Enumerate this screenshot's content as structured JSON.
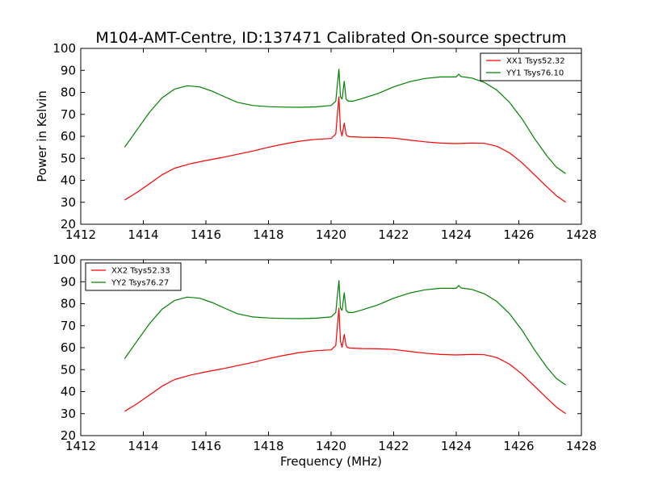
{
  "chart_data": [
    {
      "type": "line",
      "title": "M104-AMT-Centre, ID:137471 Calibrated On-source spectrum",
      "xlabel": "",
      "ylabel": "Power in Kelvin",
      "xlim": [
        1412,
        1428
      ],
      "ylim": [
        20,
        100
      ],
      "xticks": [
        1412,
        1414,
        1416,
        1418,
        1420,
        1422,
        1424,
        1426,
        1428
      ],
      "yticks": [
        20,
        30,
        40,
        50,
        60,
        70,
        80,
        90,
        100
      ],
      "grid": false,
      "legend_position": "top-right",
      "series": [
        {
          "name": "XX1 Tsys52.32",
          "color": "#ff0000",
          "x": [
            1413.4,
            1413.8,
            1414.2,
            1414.6,
            1415.0,
            1415.5,
            1416.0,
            1416.5,
            1417.0,
            1417.5,
            1418.0,
            1418.5,
            1419.0,
            1419.5,
            1420.0,
            1420.15,
            1420.25,
            1420.3,
            1420.35,
            1420.42,
            1420.48,
            1420.52,
            1420.6,
            1421.0,
            1421.5,
            1422.0,
            1422.5,
            1423.0,
            1423.5,
            1424.0,
            1424.5,
            1424.9,
            1425.3,
            1425.7,
            1426.1,
            1426.5,
            1426.9,
            1427.2,
            1427.5
          ],
          "values": [
            31,
            34.5,
            38.5,
            42.5,
            45.5,
            47.5,
            49,
            50.3,
            51.8,
            53.3,
            55,
            56.5,
            57.8,
            58.6,
            59,
            61,
            78,
            63,
            60.2,
            66,
            61,
            60.2,
            59.8,
            59.6,
            59.5,
            59.2,
            58.3,
            57.5,
            56.9,
            56.7,
            56.9,
            56.8,
            55.5,
            52.5,
            48,
            42.5,
            37,
            33,
            30
          ]
        },
        {
          "name": "YY1 Tsys76.10",
          "color": "#008000",
          "x": [
            1413.4,
            1413.8,
            1414.2,
            1414.6,
            1415.0,
            1415.4,
            1415.8,
            1416.2,
            1416.6,
            1417.0,
            1417.5,
            1418.0,
            1418.5,
            1419.0,
            1419.5,
            1420.0,
            1420.15,
            1420.25,
            1420.3,
            1420.35,
            1420.42,
            1420.48,
            1420.55,
            1420.7,
            1421.0,
            1421.5,
            1422.0,
            1422.5,
            1423.0,
            1423.5,
            1424.0,
            1424.08,
            1424.15,
            1424.5,
            1424.9,
            1425.3,
            1425.7,
            1426.1,
            1426.5,
            1426.9,
            1427.2,
            1427.5
          ],
          "values": [
            55,
            63,
            71,
            77.5,
            81.5,
            83,
            82.5,
            80.5,
            78,
            75.5,
            74,
            73.5,
            73.3,
            73.2,
            73.4,
            74,
            76,
            90.5,
            78,
            77,
            85,
            77,
            76,
            76,
            77.2,
            79.5,
            82.5,
            84.8,
            86.3,
            87,
            87,
            88.3,
            87.2,
            86.5,
            84.5,
            81,
            75.5,
            68,
            59,
            51,
            46,
            43
          ]
        }
      ]
    },
    {
      "type": "line",
      "title": "",
      "xlabel": "Frequency (MHz)",
      "ylabel": "",
      "xlim": [
        1412,
        1428
      ],
      "ylim": [
        20,
        100
      ],
      "xticks": [
        1412,
        1414,
        1416,
        1418,
        1420,
        1422,
        1424,
        1426,
        1428
      ],
      "yticks": [
        20,
        30,
        40,
        50,
        60,
        70,
        80,
        90,
        100
      ],
      "grid": false,
      "legend_position": "top-left",
      "series": [
        {
          "name": "XX2 Tsys52.33",
          "color": "#ff0000",
          "x": [
            1413.4,
            1413.8,
            1414.2,
            1414.6,
            1415.0,
            1415.5,
            1416.0,
            1416.5,
            1417.0,
            1417.5,
            1418.0,
            1418.5,
            1419.0,
            1419.5,
            1420.0,
            1420.15,
            1420.25,
            1420.3,
            1420.35,
            1420.42,
            1420.48,
            1420.52,
            1420.6,
            1421.0,
            1421.5,
            1422.0,
            1422.5,
            1423.0,
            1423.5,
            1424.0,
            1424.5,
            1424.9,
            1425.3,
            1425.7,
            1426.1,
            1426.5,
            1426.9,
            1427.2,
            1427.5
          ],
          "values": [
            31,
            34.5,
            38.5,
            42.5,
            45.5,
            47.5,
            49,
            50.3,
            51.8,
            53.3,
            55,
            56.5,
            57.8,
            58.6,
            59,
            61,
            78,
            63,
            60.2,
            66,
            61,
            60.2,
            59.8,
            59.6,
            59.5,
            59.2,
            58.3,
            57.5,
            56.9,
            56.7,
            56.9,
            56.8,
            55.5,
            52.5,
            48,
            42.5,
            37,
            33,
            30
          ]
        },
        {
          "name": "YY2 Tsys76.27",
          "color": "#008000",
          "x": [
            1413.4,
            1413.8,
            1414.2,
            1414.6,
            1415.0,
            1415.4,
            1415.8,
            1416.2,
            1416.6,
            1417.0,
            1417.5,
            1418.0,
            1418.5,
            1419.0,
            1419.5,
            1420.0,
            1420.15,
            1420.25,
            1420.3,
            1420.35,
            1420.42,
            1420.48,
            1420.55,
            1420.7,
            1421.0,
            1421.5,
            1422.0,
            1422.5,
            1423.0,
            1423.5,
            1424.0,
            1424.08,
            1424.15,
            1424.5,
            1424.9,
            1425.3,
            1425.7,
            1426.1,
            1426.5,
            1426.9,
            1427.2,
            1427.5
          ],
          "values": [
            55,
            63,
            71,
            77.5,
            81.5,
            83,
            82.5,
            80.5,
            78,
            75.5,
            74,
            73.5,
            73.3,
            73.2,
            73.4,
            74,
            76,
            90.5,
            78,
            77,
            85,
            77,
            76,
            76,
            77.2,
            79.5,
            82.5,
            84.8,
            86.3,
            87,
            87,
            88.3,
            87.2,
            86.5,
            84.5,
            81,
            75.5,
            68,
            59,
            51,
            46,
            43
          ]
        }
      ]
    }
  ]
}
